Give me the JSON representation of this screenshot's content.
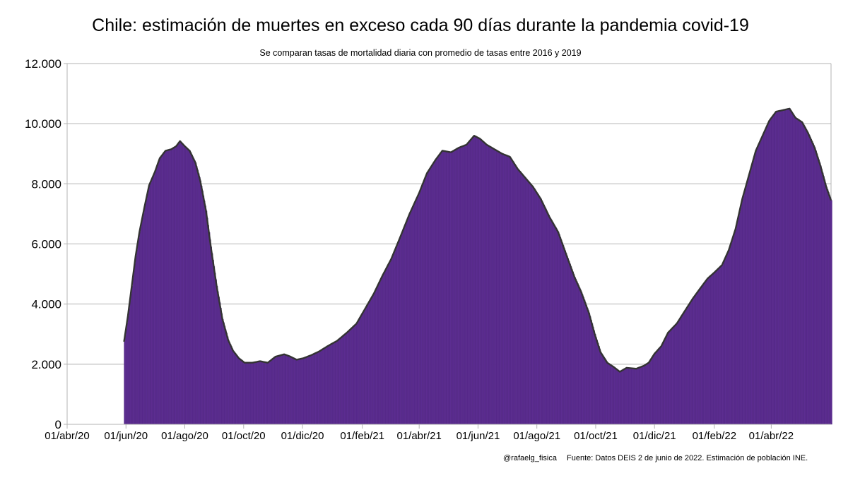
{
  "title": "Chile: estimación de muertes en exceso cada 90 días durante la pandemia covid-19",
  "subtitle": "Se comparan tasas de mortalidad diaria con promedio de tasas entre 2016 y 2019",
  "footer": {
    "handle": "@rafaelg_fisica",
    "source": "Fuente: Datos DEIS 2 de junio de 2022. Estimación de población INE."
  },
  "colors": {
    "fill": "#5c2d91",
    "line": "#333333",
    "grid": "#b3b3b3"
  },
  "chart_data": {
    "type": "area",
    "grid": true,
    "legend": "none",
    "ylim": [
      0,
      12000
    ],
    "xlim": [
      "2020-04-01",
      "2022-06-02"
    ],
    "yticks": [
      {
        "value": 0,
        "label": "0"
      },
      {
        "value": 2000,
        "label": "2.000"
      },
      {
        "value": 4000,
        "label": "4.000"
      },
      {
        "value": 6000,
        "label": "6.000"
      },
      {
        "value": 8000,
        "label": "8.000"
      },
      {
        "value": 10000,
        "label": "10.000"
      },
      {
        "value": 12000,
        "label": "12.000"
      }
    ],
    "xticks": [
      {
        "date": "2020-04-01",
        "label": "01/abr/20"
      },
      {
        "date": "2020-06-01",
        "label": "01/jun/20"
      },
      {
        "date": "2020-08-01",
        "label": "01/ago/20"
      },
      {
        "date": "2020-10-01",
        "label": "01/oct/20"
      },
      {
        "date": "2020-12-01",
        "label": "01/dic/20"
      },
      {
        "date": "2021-02-01",
        "label": "01/feb/21"
      },
      {
        "date": "2021-04-01",
        "label": "01/abr/21"
      },
      {
        "date": "2021-06-01",
        "label": "01/jun/21"
      },
      {
        "date": "2021-08-01",
        "label": "01/ago/21"
      },
      {
        "date": "2021-10-01",
        "label": "01/oct/21"
      },
      {
        "date": "2021-12-01",
        "label": "01/dic/21"
      },
      {
        "date": "2022-02-01",
        "label": "01/feb/22"
      },
      {
        "date": "2022-04-01",
        "label": "01/abr/22"
      }
    ],
    "series": [
      {
        "points": [
          [
            "2020-05-30",
            2750
          ],
          [
            "2020-06-03",
            3600
          ],
          [
            "2020-06-07",
            4600
          ],
          [
            "2020-06-11",
            5600
          ],
          [
            "2020-06-15",
            6400
          ],
          [
            "2020-06-20",
            7200
          ],
          [
            "2020-06-25",
            7950
          ],
          [
            "2020-07-01",
            8400
          ],
          [
            "2020-07-06",
            8850
          ],
          [
            "2020-07-12",
            9100
          ],
          [
            "2020-07-18",
            9150
          ],
          [
            "2020-07-23",
            9250
          ],
          [
            "2020-07-27",
            9420
          ],
          [
            "2020-08-01",
            9250
          ],
          [
            "2020-08-06",
            9100
          ],
          [
            "2020-08-12",
            8700
          ],
          [
            "2020-08-17",
            8100
          ],
          [
            "2020-08-23",
            7100
          ],
          [
            "2020-08-28",
            5900
          ],
          [
            "2020-09-03",
            4600
          ],
          [
            "2020-09-09",
            3500
          ],
          [
            "2020-09-15",
            2800
          ],
          [
            "2020-09-20",
            2450
          ],
          [
            "2020-09-26",
            2200
          ],
          [
            "2020-10-02",
            2050
          ],
          [
            "2020-10-10",
            2050
          ],
          [
            "2020-10-18",
            2100
          ],
          [
            "2020-10-26",
            2050
          ],
          [
            "2020-11-03",
            2250
          ],
          [
            "2020-11-12",
            2330
          ],
          [
            "2020-11-18",
            2260
          ],
          [
            "2020-11-25",
            2150
          ],
          [
            "2020-12-02",
            2200
          ],
          [
            "2020-12-10",
            2300
          ],
          [
            "2020-12-18",
            2420
          ],
          [
            "2020-12-27",
            2600
          ],
          [
            "2021-01-06",
            2780
          ],
          [
            "2021-01-16",
            3050
          ],
          [
            "2021-01-26",
            3350
          ],
          [
            "2021-02-04",
            3850
          ],
          [
            "2021-02-13",
            4350
          ],
          [
            "2021-02-22",
            4950
          ],
          [
            "2021-03-03",
            5500
          ],
          [
            "2021-03-12",
            6200
          ],
          [
            "2021-03-22",
            7000
          ],
          [
            "2021-04-01",
            7700
          ],
          [
            "2021-04-09",
            8350
          ],
          [
            "2021-04-18",
            8800
          ],
          [
            "2021-04-25",
            9100
          ],
          [
            "2021-05-04",
            9050
          ],
          [
            "2021-05-12",
            9200
          ],
          [
            "2021-05-20",
            9300
          ],
          [
            "2021-05-28",
            9600
          ],
          [
            "2021-06-03",
            9500
          ],
          [
            "2021-06-10",
            9300
          ],
          [
            "2021-06-18",
            9150
          ],
          [
            "2021-06-26",
            9000
          ],
          [
            "2021-07-04",
            8900
          ],
          [
            "2021-07-12",
            8500
          ],
          [
            "2021-07-20",
            8200
          ],
          [
            "2021-07-28",
            7900
          ],
          [
            "2021-08-05",
            7500
          ],
          [
            "2021-08-14",
            6900
          ],
          [
            "2021-08-23",
            6400
          ],
          [
            "2021-09-01",
            5600
          ],
          [
            "2021-09-09",
            4900
          ],
          [
            "2021-09-16",
            4400
          ],
          [
            "2021-09-24",
            3700
          ],
          [
            "2021-09-30",
            3000
          ],
          [
            "2021-10-06",
            2400
          ],
          [
            "2021-10-13",
            2050
          ],
          [
            "2021-10-20",
            1900
          ],
          [
            "2021-10-26",
            1750
          ],
          [
            "2021-11-02",
            1880
          ],
          [
            "2021-11-12",
            1850
          ],
          [
            "2021-11-20",
            1950
          ],
          [
            "2021-11-25",
            2050
          ],
          [
            "2021-12-01",
            2350
          ],
          [
            "2021-12-08",
            2600
          ],
          [
            "2021-12-15",
            3050
          ],
          [
            "2021-12-24",
            3350
          ],
          [
            "2022-01-02",
            3800
          ],
          [
            "2022-01-10",
            4200
          ],
          [
            "2022-01-18",
            4550
          ],
          [
            "2022-01-25",
            4850
          ],
          [
            "2022-02-01",
            5050
          ],
          [
            "2022-02-09",
            5300
          ],
          [
            "2022-02-16",
            5800
          ],
          [
            "2022-02-23",
            6500
          ],
          [
            "2022-03-02",
            7500
          ],
          [
            "2022-03-09",
            8300
          ],
          [
            "2022-03-16",
            9100
          ],
          [
            "2022-03-23",
            9600
          ],
          [
            "2022-03-30",
            10100
          ],
          [
            "2022-04-06",
            10400
          ],
          [
            "2022-04-13",
            10450
          ],
          [
            "2022-04-20",
            10500
          ],
          [
            "2022-04-26",
            10200
          ],
          [
            "2022-05-03",
            10050
          ],
          [
            "2022-05-09",
            9700
          ],
          [
            "2022-05-16",
            9200
          ],
          [
            "2022-05-22",
            8600
          ],
          [
            "2022-05-28",
            7900
          ],
          [
            "2022-06-02",
            7450
          ]
        ]
      }
    ]
  }
}
